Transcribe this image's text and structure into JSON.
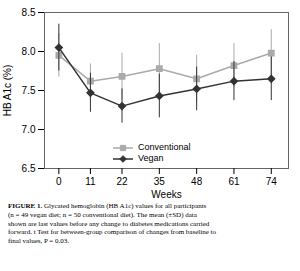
{
  "chart_data": {
    "type": "line",
    "caption_label": "FIGURE 1.",
    "caption": "Glycated hemoglobin (HB A1c) values for all participants\n(n = 49 vegan diet; n = 50 conventional diet). The mean (±SD) data\nshown are last values before any change to diabetes medications carried\nforward. t Test for between-group comparison of changes from baseline to\nfinal values, P = 0.03.",
    "x_label": "Weeks",
    "y_label": "HB A1c (%)",
    "x": [
      0,
      11,
      22,
      35,
      48,
      61,
      74
    ],
    "xlim": [
      -5,
      80
    ],
    "xticks": [
      0,
      11,
      22,
      35,
      48,
      61,
      74
    ],
    "ylim": [
      6.5,
      8.5
    ],
    "yticks": [
      6.5,
      {
        "value": 7,
        "label": "7.0"
      },
      7.5,
      {
        "value": 8,
        "label": "8.0"
      },
      8.5
    ],
    "grid": false,
    "legend": "lower left",
    "series": [
      {
        "name": "Conventional",
        "color": "#aaaaaa",
        "marker": "square",
        "values": [
          7.95,
          7.62,
          7.68,
          7.78,
          7.65,
          7.82,
          7.98
        ],
        "sd": [
          0.28,
          0.22,
          0.3,
          0.32,
          0.3,
          0.28,
          0.3
        ]
      },
      {
        "name": "Vegan",
        "color": "#333333",
        "marker": "diamond",
        "values": [
          8.05,
          7.47,
          7.3,
          7.43,
          7.52,
          7.62,
          7.65
        ],
        "sd": [
          0.3,
          0.25,
          0.22,
          0.28,
          0.28,
          0.25,
          0.28
        ]
      }
    ]
  }
}
